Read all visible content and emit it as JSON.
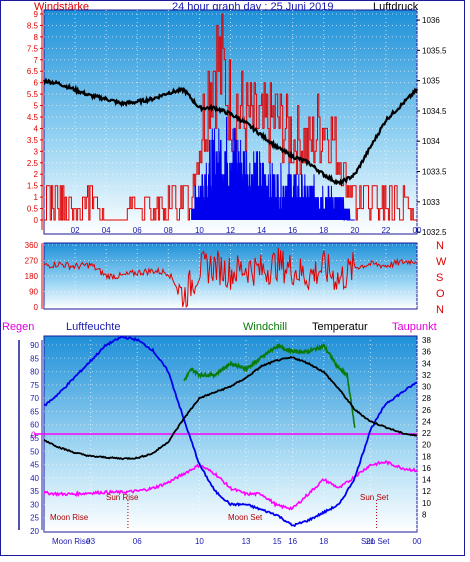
{
  "header": {
    "left_label": "Windstärke",
    "title": "24 hour graph day : 25 Juni 2019",
    "right_label": "Luftdruck"
  },
  "colors": {
    "red": "#e00000",
    "blue": "#0000ee",
    "black": "#000000",
    "green": "#0a7a0a",
    "magenta": "#ff00ff",
    "axis_text_blue": "#1a1ab0",
    "panel_top": "#1e90d8",
    "panel_bottom": "#ffffff"
  },
  "chart_data": [
    {
      "type": "line",
      "name": "wind_pressure_panel",
      "x_ticks": [
        "02",
        "04",
        "06",
        "08",
        "10",
        "12",
        "14",
        "16",
        "18",
        "20",
        "22",
        "00"
      ],
      "y_left": {
        "label": "Windstärke",
        "min": 0,
        "max": 9,
        "ticks": [
          "0",
          "0.5",
          "1",
          "1.5",
          "2",
          "2.5",
          "3",
          "3.5",
          "4",
          "4.5",
          "5",
          "5.5",
          "6",
          "6.5",
          "7",
          "7.5",
          "8",
          "8.5",
          "9"
        ]
      },
      "y_right": {
        "label": "Luftdruck",
        "min": 1032.7,
        "max": 1036.1,
        "ticks": [
          "1032.5",
          "1033",
          "1033.5",
          "1034",
          "1034.5",
          "1035",
          "1035.5",
          "1036"
        ]
      },
      "pressure": {
        "hours": [
          0,
          1,
          2,
          3,
          4,
          5,
          6,
          7,
          8,
          9,
          10,
          11,
          12,
          13,
          14,
          15,
          16,
          17,
          18,
          19,
          20,
          21,
          22,
          23,
          24
        ],
        "values": [
          1035.0,
          1034.95,
          1034.85,
          1034.75,
          1034.7,
          1034.62,
          1034.65,
          1034.7,
          1034.8,
          1034.85,
          1034.55,
          1034.55,
          1034.45,
          1034.3,
          1034.1,
          1033.9,
          1033.75,
          1033.65,
          1033.45,
          1033.3,
          1033.45,
          1033.9,
          1034.35,
          1034.6,
          1034.85
        ]
      },
      "wind_gust": {
        "hours": [
          0,
          1,
          2,
          3,
          4,
          5,
          6,
          7,
          8,
          9,
          9.5,
          10,
          10.5,
          11,
          11.5,
          12,
          12.5,
          13,
          14,
          15,
          16,
          17,
          18,
          19,
          19.5,
          20,
          21,
          22,
          23,
          24
        ],
        "values": [
          1.5,
          1.5,
          0.5,
          1.5,
          0,
          0,
          1.5,
          0.5,
          1.5,
          1.5,
          2,
          4,
          7,
          9,
          8,
          6.5,
          6,
          5.5,
          5,
          5.5,
          4.5,
          4,
          5.5,
          3.5,
          2,
          1.5,
          1.5,
          1.5,
          1.5,
          0
        ]
      },
      "wind_mean": {
        "hours": [
          9.5,
          10,
          11,
          12,
          13,
          14,
          15,
          16,
          17,
          18,
          19,
          19.5,
          20
        ],
        "values": [
          0.5,
          2,
          3.5,
          4,
          3,
          2.5,
          2,
          2,
          1.5,
          1.5,
          1,
          0.5,
          0
        ]
      }
    },
    {
      "type": "line",
      "name": "wind_direction_panel",
      "y_left": {
        "min": 0,
        "max": 360,
        "ticks": [
          "0",
          "90",
          "180",
          "270",
          "360"
        ]
      },
      "y_right_labels": [
        "N",
        "W",
        "S",
        "O",
        "N"
      ],
      "direction": {
        "hours": [
          0,
          1,
          2,
          3,
          4,
          5,
          6,
          7,
          8,
          9,
          10,
          11,
          12,
          13,
          14,
          15,
          16,
          17,
          18,
          19,
          20,
          21,
          22,
          23,
          24
        ],
        "values": [
          240,
          250,
          235,
          245,
          180,
          180,
          200,
          210,
          200,
          60,
          220,
          240,
          200,
          230,
          210,
          250,
          220,
          180,
          230,
          160,
          230,
          250,
          240,
          260,
          270
        ]
      }
    },
    {
      "type": "line",
      "name": "humidity_temperature_panel",
      "x_ticks": [
        "03",
        "06",
        "10",
        "13",
        "15",
        "16",
        "18",
        "21",
        "00"
      ],
      "series_labels": {
        "rain": "Regen",
        "humidity": "Luftfeuchte",
        "windchill": "Windchill",
        "temperature": "Temperatur",
        "dewpoint": "Taupunkt"
      },
      "y_left": {
        "min": 20,
        "max": 90,
        "ticks": [
          "20",
          "25",
          "30",
          "35",
          "40",
          "45",
          "50",
          "55",
          "60",
          "65",
          "70",
          "75",
          "80",
          "85",
          "90"
        ]
      },
      "y_right": {
        "min": 6,
        "max": 38,
        "ticks": [
          "8",
          "10",
          "12",
          "14",
          "16",
          "18",
          "20",
          "22",
          "24",
          "26",
          "28",
          "30",
          "32",
          "34",
          "36",
          "38"
        ]
      },
      "rain_zero_label": "0",
      "humidity": {
        "hours": [
          0,
          1,
          2,
          3,
          4,
          5,
          6,
          7,
          8,
          9,
          10,
          11,
          12,
          13,
          14,
          15,
          16,
          17,
          18,
          19,
          20,
          21,
          22,
          23,
          24
        ],
        "values": [
          67,
          72,
          78,
          84,
          90,
          93,
          92,
          88,
          80,
          62,
          45,
          35,
          30,
          30,
          28,
          26,
          22,
          24,
          27,
          30,
          40,
          58,
          68,
          72,
          76
        ]
      },
      "temperature": {
        "hours": [
          0,
          1,
          2,
          3,
          4,
          5,
          6,
          7,
          8,
          9,
          10,
          11,
          12,
          13,
          14,
          15,
          16,
          17,
          18,
          19,
          20,
          21,
          22,
          23,
          24
        ],
        "values": [
          20.8,
          19.5,
          18.6,
          18.0,
          17.8,
          17.6,
          17.7,
          18.5,
          20.5,
          24.5,
          28.0,
          29.0,
          30.0,
          31.5,
          33.5,
          34.5,
          35.0,
          34.0,
          32.5,
          29.5,
          26.0,
          24.0,
          23.0,
          22.0,
          21.5
        ]
      },
      "windchill": {
        "hours": [
          9,
          9.5,
          10,
          11,
          12,
          13,
          14,
          15,
          16,
          17,
          18,
          19,
          19.5,
          20
        ],
        "values": [
          31,
          33,
          32,
          32,
          34,
          33,
          35,
          37,
          36,
          36,
          37,
          33,
          32,
          23
        ]
      },
      "dewpoint": {
        "hours": [
          0,
          1,
          2,
          3,
          4,
          5,
          6,
          7,
          8,
          9,
          10,
          11,
          12,
          13,
          14,
          15,
          16,
          17,
          18,
          19,
          20,
          21,
          22,
          23,
          24
        ],
        "values": [
          11.7,
          11.5,
          11.5,
          11.7,
          11.8,
          11.8,
          12.0,
          12.5,
          13.5,
          15.0,
          16.5,
          15.0,
          12.5,
          11.5,
          11.5,
          9.5,
          9.0,
          11.5,
          14.0,
          12.5,
          14.5,
          16.5,
          17.0,
          16.0,
          15.5
        ]
      },
      "annotations": {
        "sun_rise": "Sun Rise",
        "sun_set": "Sun Set",
        "moon_rise": "Moon Rise",
        "moon_set": "Moon Set",
        "moon_rise_axis": "Moon Rise",
        "sun_set_axis": "Sun Set"
      }
    }
  ]
}
